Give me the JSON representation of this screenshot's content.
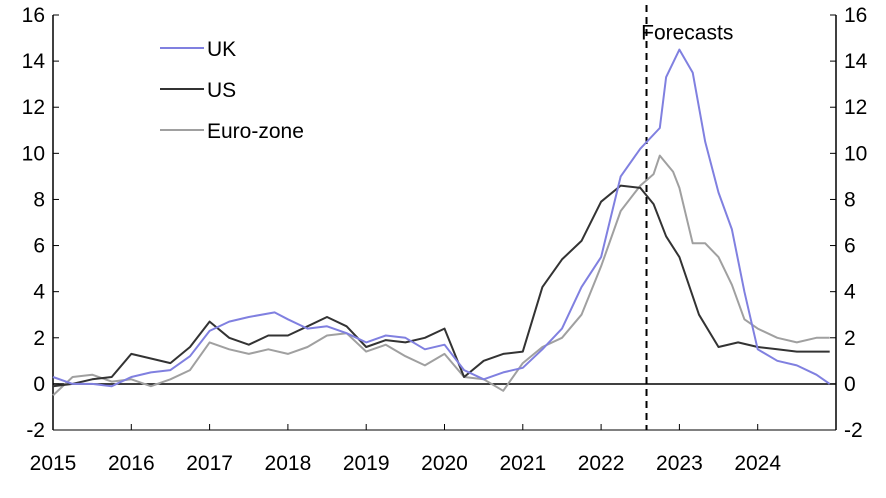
{
  "chart_data": {
    "type": "line",
    "title": "",
    "xlabel": "",
    "ylabel": "",
    "xlim": [
      2015,
      2025
    ],
    "ylim": [
      -2,
      16
    ],
    "yticks": [
      -2,
      0,
      2,
      4,
      6,
      8,
      10,
      12,
      14,
      16
    ],
    "xticks": [
      2015,
      2016,
      2017,
      2018,
      2019,
      2020,
      2021,
      2022,
      2023,
      2024
    ],
    "legend_position": "top-left",
    "forecast_line_x": 2022.58,
    "annotations": [
      {
        "text": "Forecasts",
        "x": 2023.1,
        "y": 15.5
      }
    ],
    "series": [
      {
        "name": "UK",
        "color": "#8080e0",
        "x": [
          2015.0,
          2015.25,
          2015.5,
          2015.75,
          2016.0,
          2016.25,
          2016.5,
          2016.75,
          2017.0,
          2017.25,
          2017.5,
          2017.83,
          2018.0,
          2018.25,
          2018.5,
          2018.75,
          2019.0,
          2019.25,
          2019.5,
          2019.75,
          2020.0,
          2020.25,
          2020.5,
          2020.75,
          2021.0,
          2021.25,
          2021.5,
          2021.75,
          2022.0,
          2022.25,
          2022.5,
          2022.75,
          2022.83,
          2023.0,
          2023.17,
          2023.33,
          2023.5,
          2023.67,
          2023.83,
          2024.0,
          2024.25,
          2024.5,
          2024.75,
          2024.92
        ],
        "values": [
          0.3,
          0.0,
          0.0,
          -0.1,
          0.3,
          0.5,
          0.6,
          1.2,
          2.3,
          2.7,
          2.9,
          3.1,
          2.8,
          2.4,
          2.5,
          2.2,
          1.8,
          2.1,
          2.0,
          1.5,
          1.7,
          0.6,
          0.2,
          0.5,
          0.7,
          1.5,
          2.4,
          4.2,
          5.5,
          9.0,
          10.2,
          11.1,
          13.3,
          14.5,
          13.5,
          10.5,
          8.3,
          6.7,
          4.0,
          1.5,
          1.0,
          0.8,
          0.4,
          0.0
        ]
      },
      {
        "name": "US",
        "color": "#333333",
        "x": [
          2015.0,
          2015.25,
          2015.5,
          2015.75,
          2016.0,
          2016.25,
          2016.5,
          2016.75,
          2017.0,
          2017.25,
          2017.5,
          2017.75,
          2018.0,
          2018.25,
          2018.5,
          2018.75,
          2019.0,
          2019.25,
          2019.5,
          2019.75,
          2020.0,
          2020.25,
          2020.5,
          2020.75,
          2021.0,
          2021.25,
          2021.5,
          2021.75,
          2022.0,
          2022.25,
          2022.5,
          2022.67,
          2022.83,
          2023.0,
          2023.25,
          2023.5,
          2023.75,
          2024.0,
          2024.25,
          2024.5,
          2024.75,
          2024.92
        ],
        "values": [
          -0.1,
          0.0,
          0.2,
          0.3,
          1.3,
          1.1,
          0.9,
          1.6,
          2.7,
          2.0,
          1.7,
          2.1,
          2.1,
          2.5,
          2.9,
          2.5,
          1.6,
          1.9,
          1.8,
          2.0,
          2.4,
          0.3,
          1.0,
          1.3,
          1.4,
          4.2,
          5.4,
          6.2,
          7.9,
          8.6,
          8.5,
          7.8,
          6.4,
          5.5,
          3.0,
          1.6,
          1.8,
          1.6,
          1.5,
          1.4,
          1.4,
          1.4
        ]
      },
      {
        "name": "Euro-zone",
        "color": "#a0a0a0",
        "x": [
          2015.0,
          2015.25,
          2015.5,
          2015.75,
          2016.0,
          2016.25,
          2016.5,
          2016.75,
          2017.0,
          2017.25,
          2017.5,
          2017.75,
          2018.0,
          2018.25,
          2018.5,
          2018.75,
          2019.0,
          2019.25,
          2019.5,
          2019.75,
          2020.0,
          2020.25,
          2020.5,
          2020.75,
          2021.0,
          2021.25,
          2021.5,
          2021.75,
          2022.0,
          2022.25,
          2022.5,
          2022.67,
          2022.75,
          2022.92,
          2023.0,
          2023.17,
          2023.33,
          2023.5,
          2023.67,
          2023.83,
          2024.0,
          2024.25,
          2024.5,
          2024.75,
          2024.92
        ],
        "values": [
          -0.5,
          0.3,
          0.4,
          0.1,
          0.2,
          -0.1,
          0.2,
          0.6,
          1.8,
          1.5,
          1.3,
          1.5,
          1.3,
          1.6,
          2.1,
          2.2,
          1.4,
          1.7,
          1.2,
          0.8,
          1.3,
          0.3,
          0.2,
          -0.3,
          0.9,
          1.6,
          2.0,
          3.0,
          5.1,
          7.5,
          8.6,
          9.1,
          9.9,
          9.2,
          8.5,
          6.1,
          6.1,
          5.5,
          4.3,
          2.8,
          2.4,
          2.0,
          1.8,
          2.0,
          2.0
        ]
      }
    ]
  }
}
